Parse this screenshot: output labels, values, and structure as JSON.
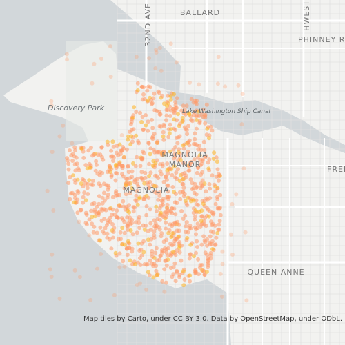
{
  "map": {
    "labels": {
      "ballard": "BALLARD",
      "avenue": "32ND AVE",
      "northwest": "HWEST",
      "phinney": "PHINNEY RI",
      "discovery_park": "Discovery Park",
      "ship_canal": "Lake Washington Ship Canal",
      "magnolia_manor_1": "MAGNOLIA",
      "magnolia_manor_2": "MANOR",
      "magnolia": "MAGNOLIA",
      "fremont": "FREM",
      "queen_anne": "QUEEN ANNE"
    },
    "attribution": "Map tiles by Carto, under CC BY 3.0. Data by OpenStreetMap, under ODbL."
  }
}
